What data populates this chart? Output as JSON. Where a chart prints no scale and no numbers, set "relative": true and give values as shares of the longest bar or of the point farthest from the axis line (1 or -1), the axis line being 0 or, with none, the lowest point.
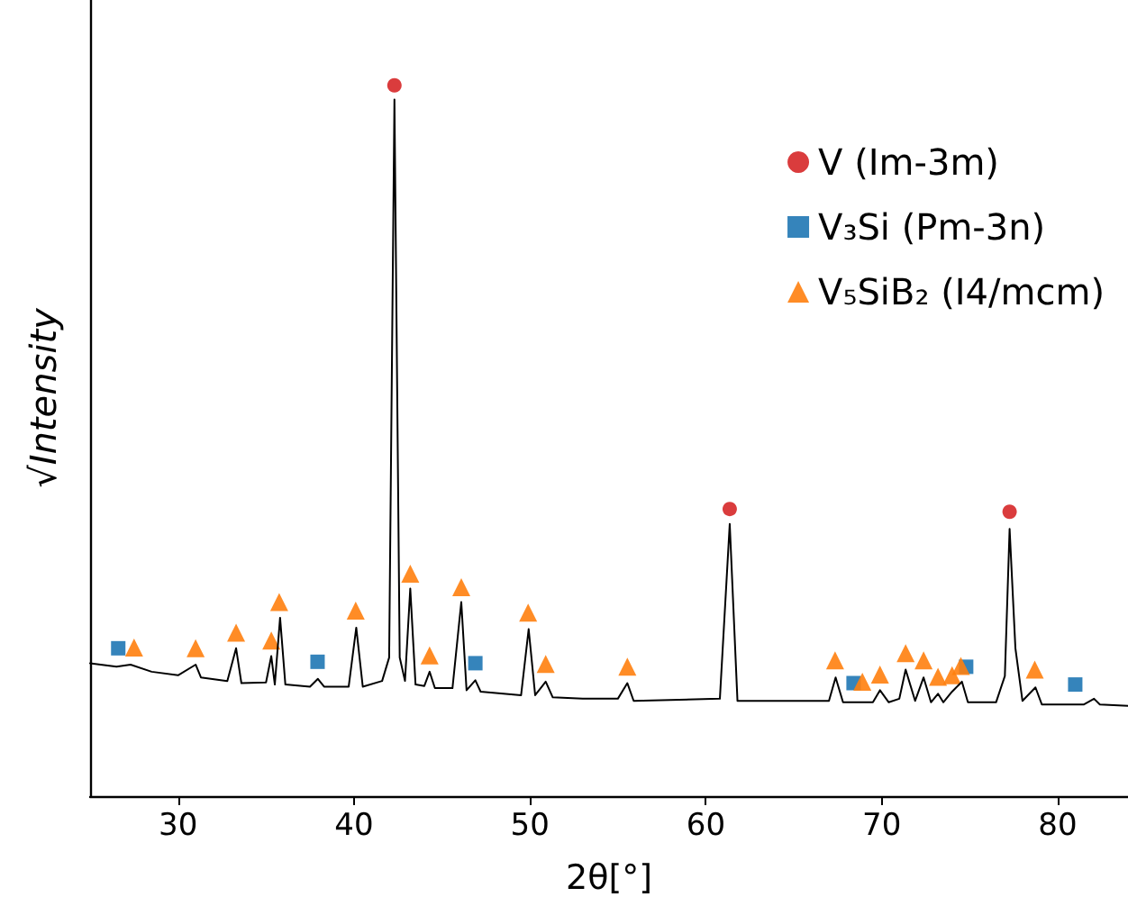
{
  "chart_data": {
    "type": "line",
    "xlabel": "2θ[°]",
    "ylabel": "√Intensity",
    "relative": true,
    "xlim": [
      25,
      84
    ],
    "xticks": [
      30,
      40,
      50,
      60,
      70,
      80
    ],
    "grid": false,
    "legend": "top right",
    "series": [
      {
        "color": "#000000",
        "marker": "none",
        "x": [
          25.0,
          26.5,
          27.3,
          28.5,
          30.0,
          31.0,
          31.3,
          32.8,
          33.3,
          33.6,
          35.0,
          35.3,
          35.5,
          35.8,
          36.1,
          37.5,
          37.95,
          38.3,
          39.7,
          40.13,
          40.5,
          41.6,
          42.0,
          42.3,
          42.6,
          42.9,
          43.2,
          43.5,
          44.0,
          44.3,
          44.6,
          45.6,
          46.1,
          46.4,
          46.9,
          47.2,
          49.5,
          49.93,
          50.3,
          50.9,
          51.3,
          53.0,
          55.0,
          55.54,
          55.9,
          60.8,
          61.36,
          61.8,
          67.0,
          67.38,
          67.8,
          69.5,
          69.9,
          70.4,
          71.0,
          71.36,
          71.9,
          72.38,
          72.8,
          73.2,
          73.5,
          74.0,
          74.56,
          74.9,
          76.5,
          77.0,
          77.27,
          77.6,
          78.0,
          78.74,
          79.1,
          81.5,
          82.07,
          82.4,
          84.0
        ],
        "values": [
          0.187,
          0.182,
          0.185,
          0.175,
          0.17,
          0.185,
          0.167,
          0.162,
          0.208,
          0.159,
          0.16,
          0.197,
          0.157,
          0.251,
          0.157,
          0.154,
          0.165,
          0.154,
          0.154,
          0.237,
          0.154,
          0.162,
          0.195,
          0.98,
          0.195,
          0.162,
          0.292,
          0.157,
          0.155,
          0.175,
          0.152,
          0.152,
          0.273,
          0.149,
          0.163,
          0.147,
          0.142,
          0.235,
          0.142,
          0.161,
          0.139,
          0.137,
          0.137,
          0.159,
          0.134,
          0.137,
          0.383,
          0.134,
          0.134,
          0.167,
          0.132,
          0.132,
          0.149,
          0.132,
          0.137,
          0.178,
          0.134,
          0.167,
          0.132,
          0.144,
          0.132,
          0.147,
          0.161,
          0.132,
          0.132,
          0.169,
          0.376,
          0.208,
          0.134,
          0.153,
          0.129,
          0.129,
          0.137,
          0.129,
          0.127
        ]
      },
      {
        "type": "scatter",
        "name": "V (Im-3m)",
        "color": "#d62728",
        "marker": "circle",
        "x": [
          42.3,
          61.36,
          77.27
        ],
        "values": [
          1.0,
          0.404,
          0.4
        ]
      },
      {
        "type": "scatter",
        "name": "V₃Si (Pm-3n)",
        "color": "#1f77b4",
        "marker": "square",
        "x": [
          26.6,
          37.93,
          46.9,
          68.4,
          74.8,
          81.0
        ],
        "values": [
          0.208,
          0.189,
          0.187,
          0.159,
          0.182,
          0.157
        ]
      },
      {
        "type": "scatter",
        "name": "V₅SiB₂ (I4/mcm)",
        "color": "#ff7f0e",
        "marker": "triangle",
        "x": [
          27.5,
          31.0,
          33.3,
          35.3,
          35.75,
          40.1,
          43.2,
          44.3,
          46.1,
          49.9,
          50.9,
          55.54,
          67.35,
          68.9,
          69.9,
          71.36,
          72.38,
          73.2,
          74.0,
          74.5,
          78.7
        ],
        "values": [
          0.209,
          0.208,
          0.23,
          0.219,
          0.273,
          0.261,
          0.313,
          0.198,
          0.294,
          0.258,
          0.186,
          0.182,
          0.191,
          0.161,
          0.171,
          0.201,
          0.191,
          0.168,
          0.17,
          0.183,
          0.178
        ]
      }
    ]
  }
}
